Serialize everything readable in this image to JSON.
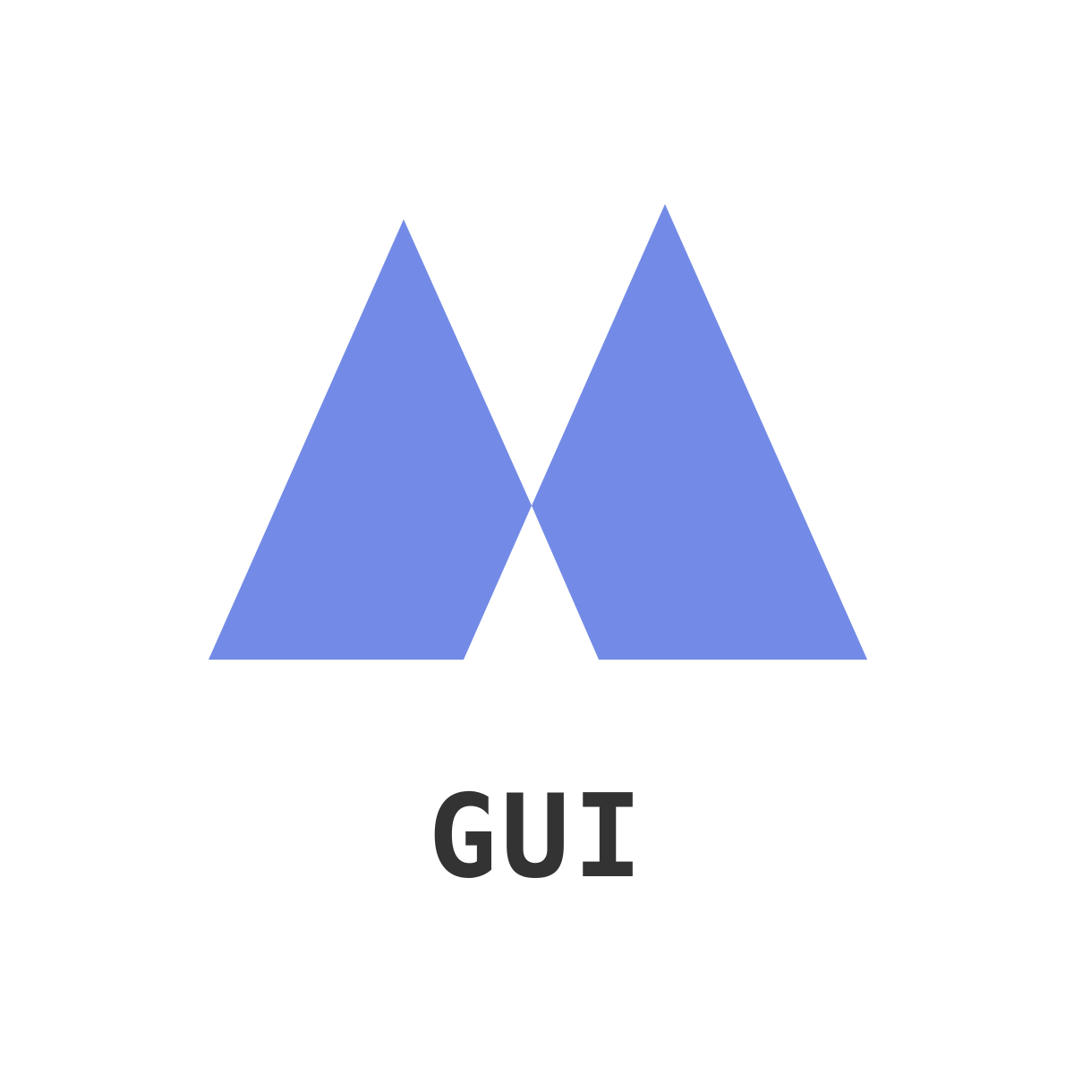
{
  "logo": {
    "icon_name": "mountain-peaks-logo-icon",
    "color": "#738BE6"
  },
  "wordmark": {
    "text": "GUI",
    "color": "#333333"
  }
}
